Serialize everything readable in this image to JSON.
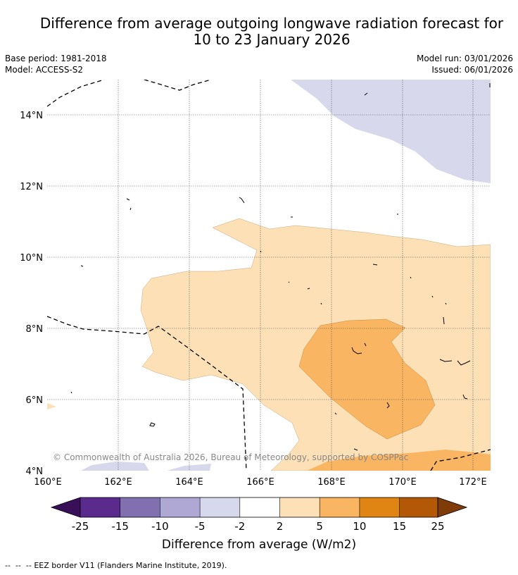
{
  "header": {
    "title_line1": "Difference from average outgoing longwave radiation forecast for",
    "title_line2": "10 to 23 January 2026",
    "base_period": "Base period: 1981-2018",
    "model": "Model: ACCESS-S2",
    "model_run": "Model run: 03/01/2026",
    "issued": "Issued: 06/01/2026"
  },
  "map": {
    "lat_labels": [
      "14°N",
      "12°N",
      "10°N",
      "8°N",
      "6°N",
      "4°N"
    ],
    "lon_labels": [
      "160°E",
      "162°E",
      "164°E",
      "166°E",
      "168°E",
      "170°E",
      "172°E"
    ],
    "copyright": "© Commonwealth of Australia 2026, Bureau of Meteorology, supported by COSPPac"
  },
  "colorbar": {
    "ticks": [
      "-25",
      "-15",
      "-10",
      "-5",
      "-2",
      "2",
      "5",
      "10",
      "15",
      "25"
    ],
    "label": "Difference from average (W/m2)",
    "colors": {
      "lt_-25": "#3a0f5a",
      "-25_-15": "#5a2a8c",
      "-15_-10": "#8070b0",
      "-10_-5": "#b0a8d4",
      "-5_-2": "#d8d8ec",
      "-2_2": "#ffffff",
      "2_5": "#fde0b6",
      "5_10": "#fab562",
      "10_15": "#e08514",
      "15_25": "#b35806",
      "gt_25": "#7f3b08"
    }
  },
  "footer": {
    "legend_symbol": "--  --  --",
    "legend_text": "EEZ border V11 (Flanders Marine Institute, 2019)."
  }
}
